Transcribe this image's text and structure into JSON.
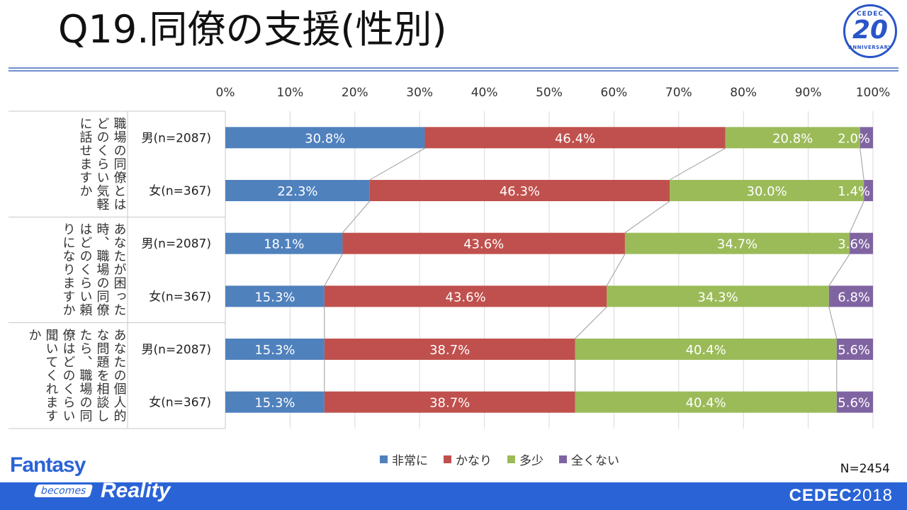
{
  "title": "Q19.同僚の支援(性別)",
  "badge": {
    "top": "CEDEC",
    "number": "20",
    "bottom": "ANNIVERSARY"
  },
  "total_n": "N=2454",
  "footer": {
    "fantasy": "Fantasy",
    "becomes": "becomes",
    "reality": "Reality",
    "cedec": "CEDEC",
    "year": "2018"
  },
  "colors": {
    "非常に": "#4f81bd",
    "かなり": "#c0504d",
    "多少": "#9bbb59",
    "全くない": "#8064a2"
  },
  "chart_data": {
    "type": "bar",
    "orientation": "horizontal",
    "stacked": "percent",
    "xlim": [
      0,
      100
    ],
    "x_ticks": [
      "0%",
      "10%",
      "20%",
      "30%",
      "40%",
      "50%",
      "60%",
      "70%",
      "80%",
      "90%",
      "100%"
    ],
    "grid": true,
    "legend_position": "bottom",
    "legend": [
      "非常に",
      "かなり",
      "多少",
      "全くない"
    ],
    "groups": [
      {
        "question": "職場の同僚とはどのくらい気軽に話せますか",
        "question_lines": [
          "職場の同僚とは",
          "どのくらい気軽",
          "に話せますか"
        ],
        "rows": [
          {
            "label": "男(n=2087)",
            "values": [
              30.8,
              46.4,
              20.8,
              2.0
            ],
            "labels": [
              "30.8%",
              "46.4%",
              "20.8%",
              "2.0%"
            ]
          },
          {
            "label": "女(n=367)",
            "values": [
              22.3,
              46.3,
              30.0,
              1.4
            ],
            "labels": [
              "22.3%",
              "46.3%",
              "30.0%",
              "1.4%"
            ]
          }
        ]
      },
      {
        "question": "あなたが困った時、職場の同僚はどのくらい頼りになりますか",
        "question_lines": [
          "あなたが困った",
          "時、職場の同僚",
          "はどのくらい頼",
          "りになりますか"
        ],
        "rows": [
          {
            "label": "男(n=2087)",
            "values": [
              18.1,
              43.6,
              34.7,
              3.6
            ],
            "labels": [
              "18.1%",
              "43.6%",
              "34.7%",
              "3.6%"
            ]
          },
          {
            "label": "女(n=367)",
            "values": [
              15.3,
              43.6,
              34.3,
              6.8
            ],
            "labels": [
              "15.3%",
              "43.6%",
              "34.3%",
              "6.8%"
            ]
          }
        ]
      },
      {
        "question": "あなたの個人的な問題を相談したら、職場の同僚はどのくらい聞いてくれますか",
        "question_lines": [
          "あなたの個人的",
          "な問題を相談し",
          "たら、職場の同",
          "僚はどのくらい",
          "聞いてくれます",
          "か"
        ],
        "rows": [
          {
            "label": "男(n=2087)",
            "values": [
              15.3,
              38.7,
              40.4,
              5.6
            ],
            "labels": [
              "15.3%",
              "38.7%",
              "40.4%",
              "5.6%"
            ]
          },
          {
            "label": "女(n=367)",
            "values": [
              15.3,
              38.7,
              40.4,
              5.6
            ],
            "labels": [
              "15.3%",
              "38.7%",
              "40.4%",
              "5.6%"
            ]
          }
        ]
      }
    ]
  }
}
